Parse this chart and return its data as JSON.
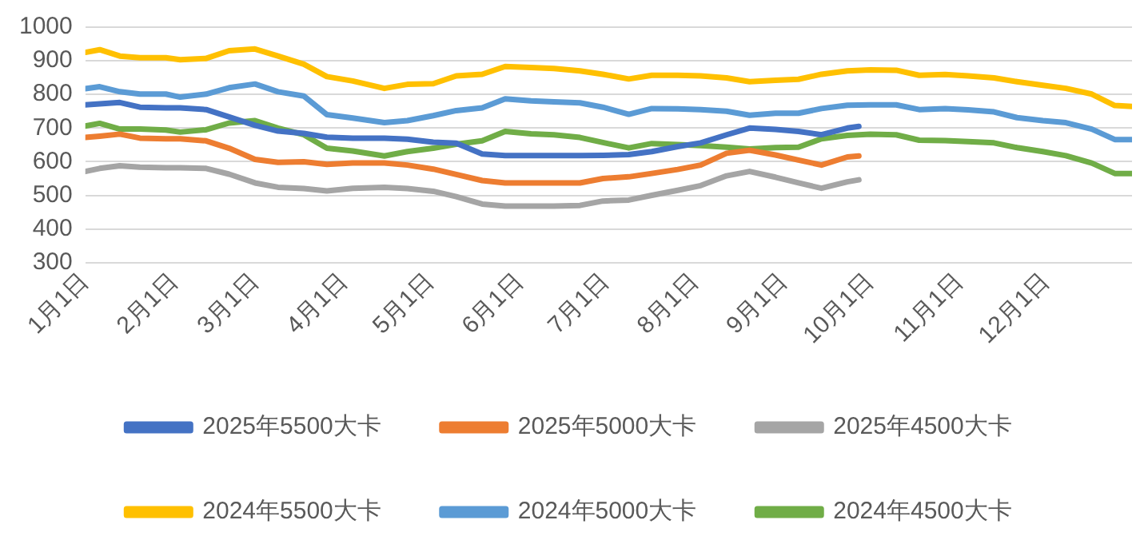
{
  "chart_data": {
    "type": "line",
    "x": [
      "--01-01",
      "--01-06",
      "--01-13",
      "--01-20",
      "--01-29",
      "--02-03",
      "--02-12",
      "--02-20",
      "--03-01",
      "--03-09",
      "--03-18",
      "--03-26",
      "--04-04",
      "--04-15",
      "--04-23",
      "--05-02",
      "--05-10",
      "--05-19",
      "--05-27",
      "--06-05",
      "--06-13",
      "--06-22",
      "--06-30",
      "--07-09",
      "--07-17",
      "--07-26",
      "--08-03",
      "--08-12",
      "--08-20",
      "--08-29",
      "--09-06",
      "--09-14",
      "--09-23",
      "--10-01",
      "--10-10",
      "--10-18",
      "--10-27",
      "--11-04",
      "--11-13",
      "--11-21",
      "--11-30",
      "--12-08",
      "--12-17",
      "--12-25",
      "--12-31"
    ],
    "series": [
      {
        "name": "2025年5500大卡",
        "color": "#4472c4",
        "x": [
          "--01-01",
          "--01-06",
          "--01-13",
          "--01-20",
          "--01-29",
          "--02-03",
          "--02-12",
          "--02-20",
          "--03-01",
          "--03-09",
          "--03-18",
          "--03-26",
          "--04-04",
          "--04-15",
          "--04-23",
          "--05-02",
          "--05-10",
          "--05-19",
          "--05-27",
          "--06-05",
          "--06-13",
          "--06-22",
          "--06-30",
          "--07-09",
          "--07-17",
          "--07-26",
          "--08-03",
          "--08-12",
          "--08-20",
          "--08-29",
          "--09-06",
          "--09-14",
          "--09-23",
          "--09-27"
        ],
        "values": [
          769,
          772,
          776,
          762,
          760,
          760,
          755,
          733,
          708,
          691,
          684,
          673,
          670,
          670,
          667,
          658,
          655,
          623,
          618,
          618,
          618,
          618,
          619,
          621,
          630,
          645,
          656,
          680,
          700,
          696,
          690,
          680,
          700,
          705
        ]
      },
      {
        "name": "2025年5000大卡",
        "color": "#ed7d31",
        "x": [
          "--01-01",
          "--01-06",
          "--01-13",
          "--01-20",
          "--01-29",
          "--02-03",
          "--02-12",
          "--02-20",
          "--03-01",
          "--03-09",
          "--03-18",
          "--03-26",
          "--04-04",
          "--04-15",
          "--04-23",
          "--05-02",
          "--05-10",
          "--05-19",
          "--05-27",
          "--06-05",
          "--06-13",
          "--06-22",
          "--06-30",
          "--07-09",
          "--07-17",
          "--07-26",
          "--08-03",
          "--08-12",
          "--08-20",
          "--08-29",
          "--09-06",
          "--09-14",
          "--09-23",
          "--09-27"
        ],
        "values": [
          672,
          676,
          682,
          670,
          668,
          668,
          662,
          640,
          607,
          598,
          600,
          592,
          596,
          596,
          590,
          578,
          562,
          544,
          537,
          537,
          537,
          537,
          550,
          555,
          565,
          577,
          590,
          625,
          634,
          620,
          605,
          590,
          614,
          617
        ]
      },
      {
        "name": "2025年4500大卡",
        "color": "#a5a5a5",
        "x": [
          "--01-01",
          "--01-06",
          "--01-13",
          "--01-20",
          "--01-29",
          "--02-03",
          "--02-12",
          "--02-20",
          "--03-01",
          "--03-09",
          "--03-18",
          "--03-26",
          "--04-04",
          "--04-15",
          "--04-23",
          "--05-02",
          "--05-10",
          "--05-19",
          "--05-27",
          "--06-05",
          "--06-13",
          "--06-22",
          "--06-30",
          "--07-09",
          "--07-17",
          "--07-26",
          "--08-03",
          "--08-12",
          "--08-20",
          "--08-29",
          "--09-06",
          "--09-14",
          "--09-23",
          "--09-27"
        ],
        "values": [
          571,
          580,
          588,
          584,
          582,
          582,
          580,
          563,
          537,
          524,
          520,
          513,
          521,
          524,
          520,
          512,
          496,
          474,
          468,
          468,
          468,
          470,
          483,
          486,
          500,
          515,
          529,
          558,
          571,
          554,
          537,
          521,
          540,
          546
        ]
      },
      {
        "name": "2024年5500大卡",
        "color": "#ffc000",
        "values": [
          925,
          933,
          914,
          909,
          909,
          903,
          907,
          930,
          935,
          914,
          890,
          853,
          840,
          818,
          830,
          832,
          855,
          860,
          883,
          880,
          877,
          870,
          860,
          846,
          857,
          857,
          855,
          849,
          838,
          842,
          845,
          860,
          870,
          873,
          872,
          857,
          859,
          855,
          849,
          838,
          827,
          818,
          801,
          767,
          764
        ]
      },
      {
        "name": "2024年5000大卡",
        "color": "#5b9bd5",
        "values": [
          817,
          823,
          808,
          801,
          801,
          792,
          801,
          820,
          831,
          808,
          795,
          740,
          730,
          716,
          722,
          737,
          752,
          760,
          787,
          781,
          778,
          775,
          762,
          741,
          758,
          757,
          755,
          750,
          738,
          744,
          744,
          758,
          768,
          769,
          769,
          755,
          758,
          754,
          748,
          731,
          722,
          716,
          697,
          666,
          666
        ]
      },
      {
        "name": "2024年4500大卡",
        "color": "#70ad47",
        "values": [
          706,
          714,
          697,
          697,
          694,
          688,
          695,
          715,
          722,
          700,
          680,
          640,
          632,
          617,
          630,
          640,
          652,
          662,
          690,
          683,
          680,
          672,
          657,
          641,
          654,
          651,
          648,
          643,
          638,
          642,
          643,
          668,
          678,
          682,
          680,
          664,
          663,
          660,
          656,
          642,
          630,
          618,
          596,
          565,
          565
        ]
      }
    ],
    "xlim": [
      "--01-01",
      "--12-31"
    ],
    "xticks": [
      {
        "value": "--01-01",
        "label": "1月1日"
      },
      {
        "value": "--02-01",
        "label": "2月1日"
      },
      {
        "value": "--03-01",
        "label": "3月1日"
      },
      {
        "value": "--04-01",
        "label": "4月1日"
      },
      {
        "value": "--05-01",
        "label": "5月1日"
      },
      {
        "value": "--06-01",
        "label": "6月1日"
      },
      {
        "value": "--07-01",
        "label": "7月1日"
      },
      {
        "value": "--08-01",
        "label": "8月1日"
      },
      {
        "value": "--09-01",
        "label": "9月1日"
      },
      {
        "value": "--10-01",
        "label": "10月1日"
      },
      {
        "value": "--11-01",
        "label": "11月1日"
      },
      {
        "value": "--12-01",
        "label": "12月1日"
      }
    ],
    "ylim": [
      300,
      1000
    ],
    "yticks": [
      300,
      400,
      500,
      600,
      700,
      800,
      900,
      1000
    ],
    "grid": "y",
    "legend": "bottom",
    "marker": "none",
    "line_style": "solid"
  }
}
